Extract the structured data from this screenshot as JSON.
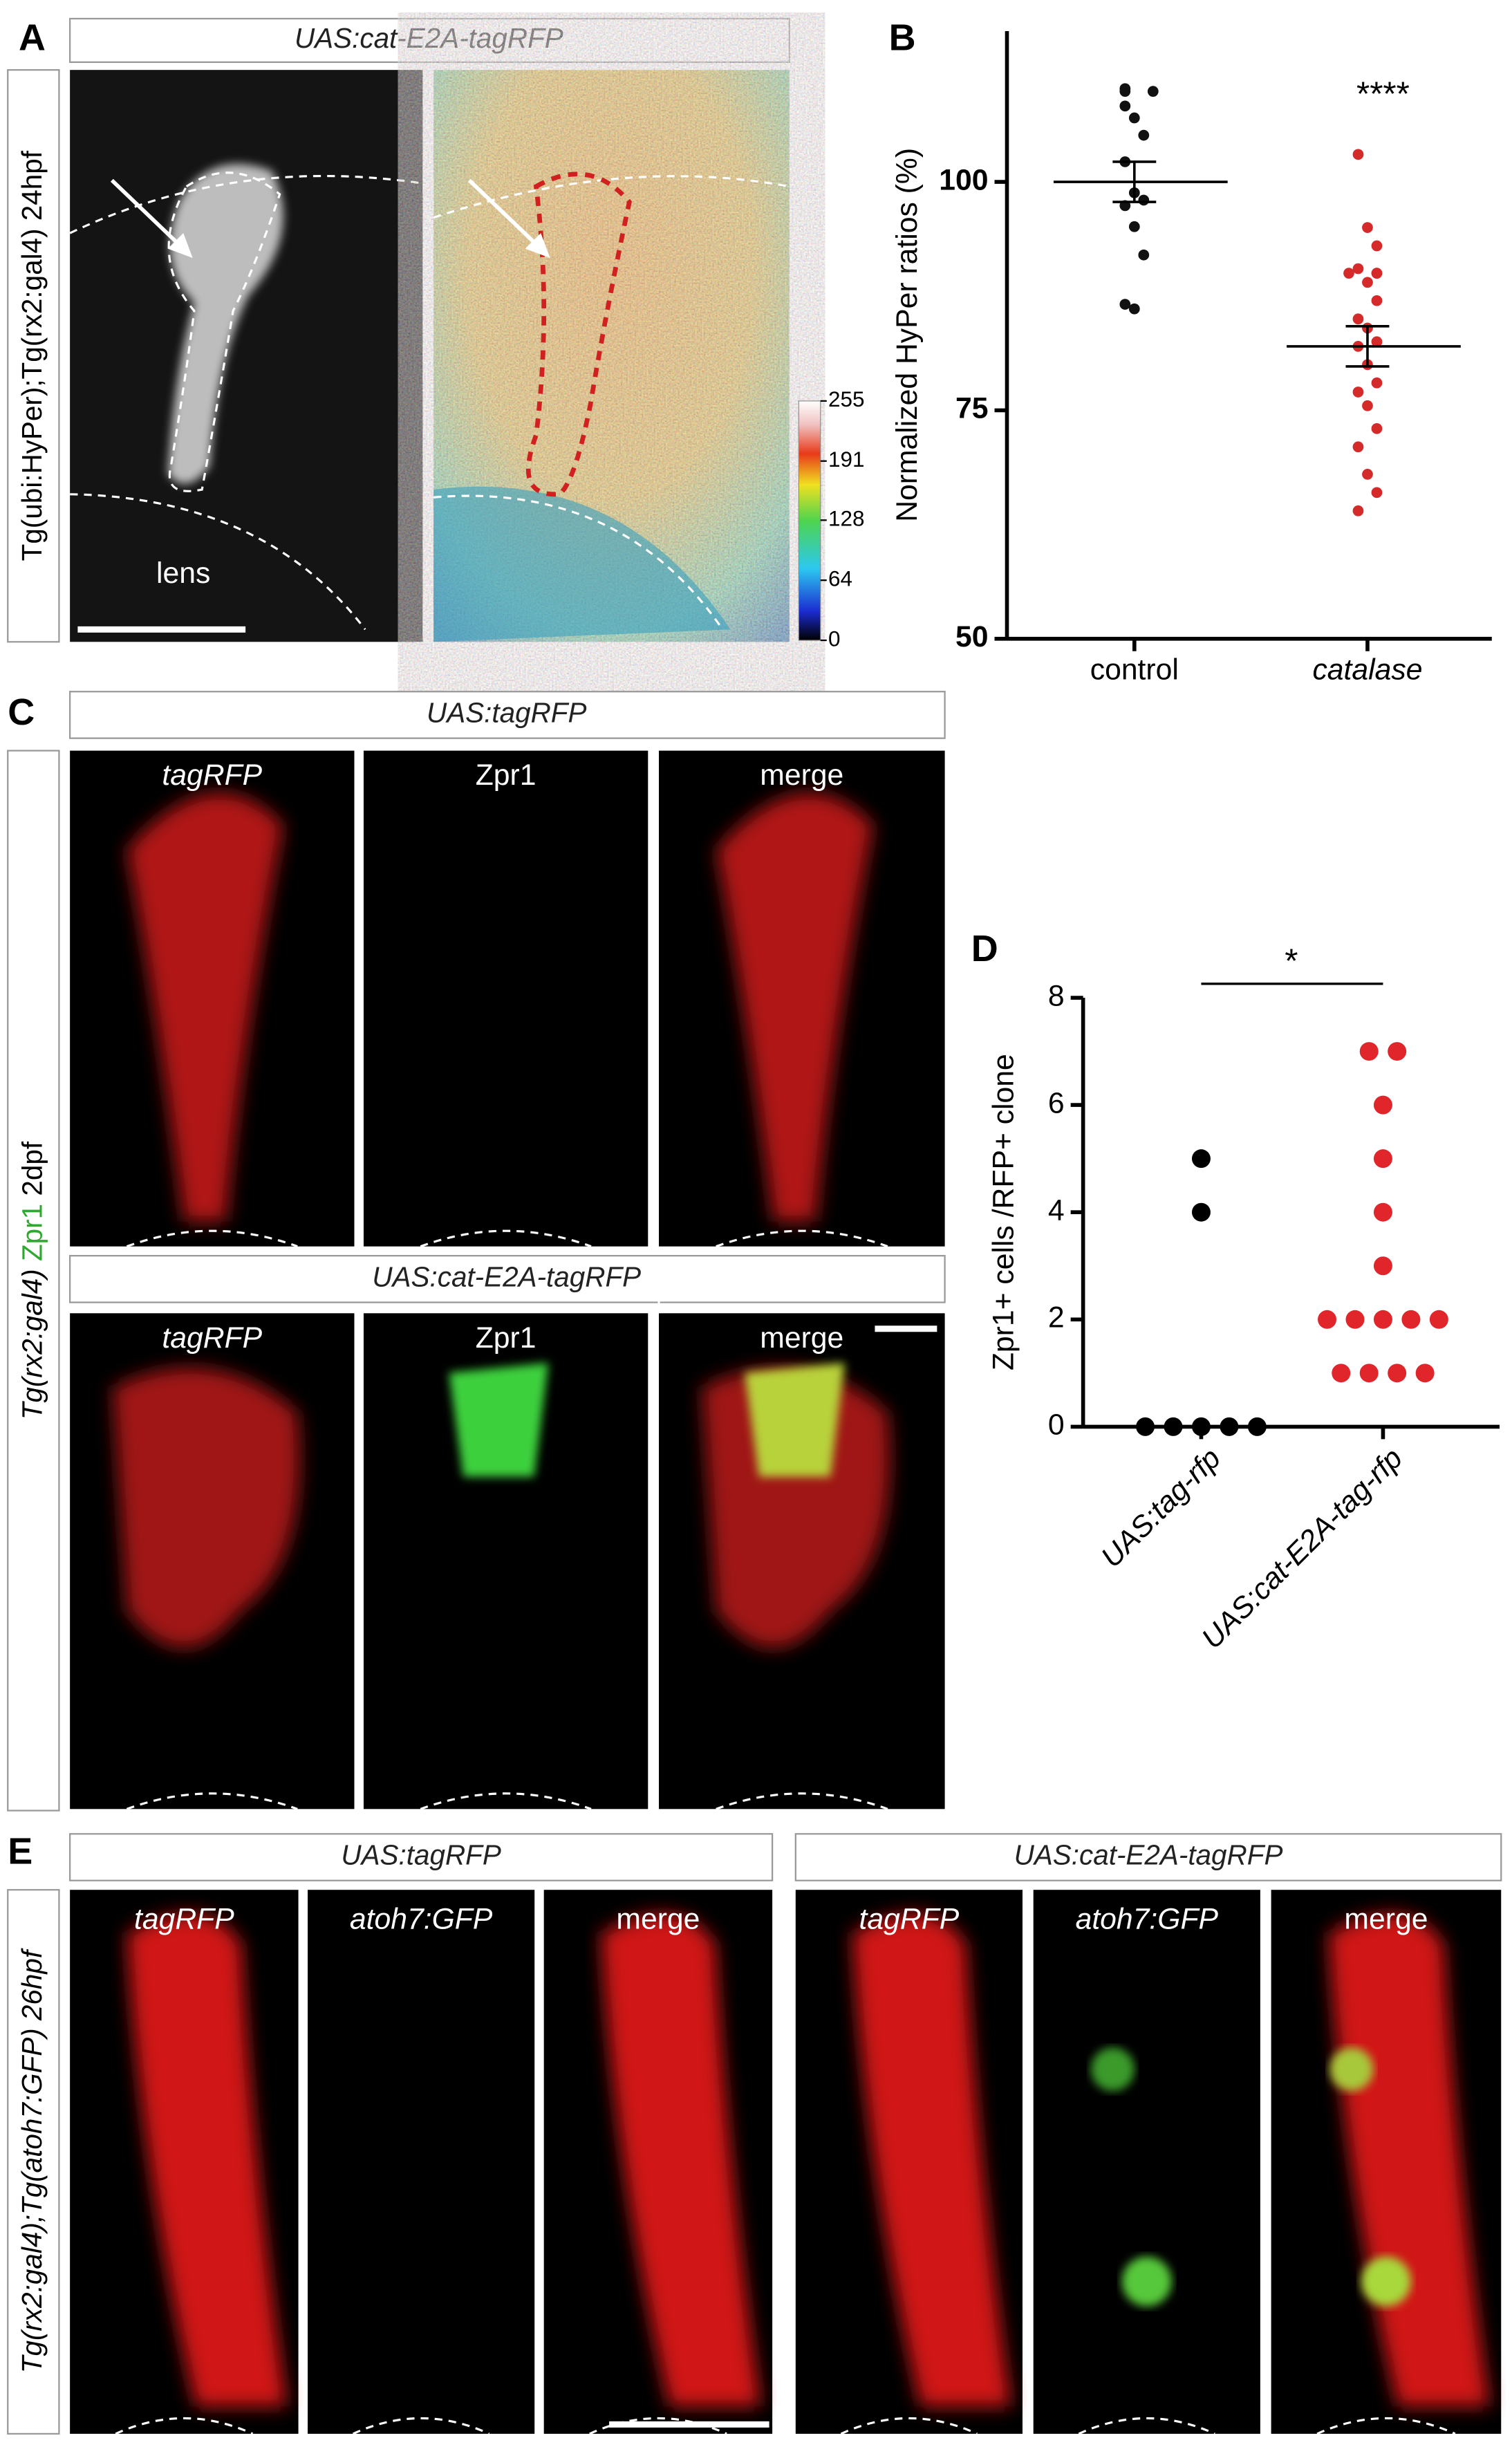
{
  "panel_a": {
    "letter": "A",
    "header": "UAS:cat-E2A-tagRFP",
    "side_label": "Tg(ubi:HyPer);Tg(rx2:gal4) 24hpf",
    "lens": "lens",
    "colorbar": {
      "lim": [
        0,
        255
      ],
      "ticks": [
        0,
        64,
        128,
        191,
        255
      ]
    }
  },
  "panel_c": {
    "letter": "C",
    "side_label": [
      "Tg(rx2:gal4)",
      "Zpr1",
      "2dpf"
    ],
    "rows": [
      {
        "header": "UAS:tagRFP",
        "channels": [
          "tagRFP",
          "Zpr1",
          "merge"
        ]
      },
      {
        "header": "UAS:cat-E2A-tagRFP",
        "channels": [
          "tagRFP",
          "Zpr1",
          "merge"
        ]
      }
    ]
  },
  "panel_e": {
    "letter": "E",
    "side_label": "Tg(rx2:gal4);Tg(atoh7:GFP) 26hpf",
    "groups": [
      {
        "header": "UAS:tagRFP",
        "channels": [
          "tagRFP",
          "atoh7:GFP",
          "merge"
        ]
      },
      {
        "header": "UAS:cat-E2A-tagRFP",
        "channels": [
          "tagRFP",
          "atoh7:GFP",
          "merge"
        ]
      }
    ]
  },
  "chart_data": [
    {
      "type": "dot-plot",
      "letter": "B",
      "y_label": "Normalized HyPer ratios (%)",
      "categories": [
        "control",
        "catalase"
      ],
      "colors": [
        "#111111",
        "#d42a2a"
      ],
      "points": [
        [
          110.2,
          109.9,
          109.9,
          108.3,
          107,
          105.1,
          102.2,
          98.8,
          98,
          97.4,
          95.1,
          92,
          86.6,
          86.1
        ],
        [
          103,
          95,
          93,
          90.5,
          90,
          90,
          90,
          89,
          87,
          85,
          84,
          82.5,
          82,
          80,
          78,
          77,
          75.5,
          73,
          71,
          68,
          66,
          64
        ]
      ],
      "means": [
        100,
        82
      ],
      "sem": [
        2.2,
        2.2
      ],
      "annotation": "****",
      "ylim": [
        50,
        116.5
      ],
      "yticks": [
        50,
        75,
        100
      ]
    },
    {
      "type": "dot-plot",
      "letter": "D",
      "y_label": "Zpr1+ cells /RFP+ clone",
      "categories": [
        "UAS:tag-rfp",
        "UAS:cat-E2A-tag-rfp"
      ],
      "colors": [
        "#000000",
        "#e0262a"
      ],
      "points": [
        [
          5,
          4,
          0,
          0,
          0,
          0,
          0
        ],
        [
          7,
          7,
          6,
          5,
          4,
          3,
          2,
          2,
          2,
          2,
          2,
          1,
          1,
          1,
          1
        ]
      ],
      "annotation": "*",
      "ylim": [
        0,
        8
      ],
      "yticks": [
        0,
        2,
        4,
        6,
        8
      ]
    }
  ]
}
